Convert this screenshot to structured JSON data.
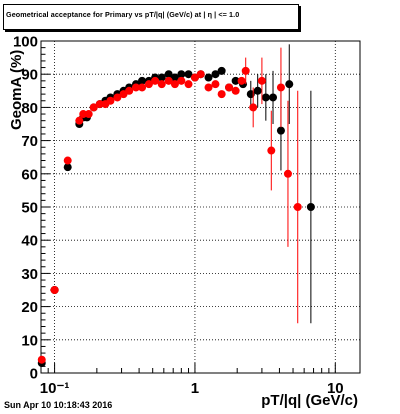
{
  "chart_data": {
    "type": "scatter",
    "title": "Geometrical acceptance for Primary vs pT/|q| (GeV/c) at | η | <= 1.0",
    "xlabel": "pT/|q| (GeV/c)",
    "ylabel": "GeomA (%)",
    "xscale": "log",
    "xlim": [
      0.08,
      15
    ],
    "ylim": [
      0,
      100
    ],
    "xticks": [
      {
        "value": 0.1,
        "label": "10⁻¹"
      },
      {
        "value": 1,
        "label": "1"
      },
      {
        "value": 10,
        "label": "10"
      }
    ],
    "yticks": [
      0,
      10,
      20,
      30,
      40,
      50,
      60,
      70,
      80,
      90,
      100
    ],
    "grid": true,
    "series": [
      {
        "color": "#000000",
        "points": [
          {
            "x": 0.081,
            "y": 3
          },
          {
            "x": 0.1,
            "y": 25,
            "xerr": 0.007
          },
          {
            "x": 0.124,
            "y": 62,
            "xerr": 0.006
          },
          {
            "x": 0.15,
            "y": 75
          },
          {
            "x": 0.16,
            "y": 77
          },
          {
            "x": 0.17,
            "y": 77
          },
          {
            "x": 0.19,
            "y": 80
          },
          {
            "x": 0.21,
            "y": 81
          },
          {
            "x": 0.23,
            "y": 82
          },
          {
            "x": 0.25,
            "y": 83
          },
          {
            "x": 0.28,
            "y": 84
          },
          {
            "x": 0.31,
            "y": 85
          },
          {
            "x": 0.34,
            "y": 86
          },
          {
            "x": 0.38,
            "y": 87
          },
          {
            "x": 0.42,
            "y": 88
          },
          {
            "x": 0.47,
            "y": 88
          },
          {
            "x": 0.52,
            "y": 89
          },
          {
            "x": 0.58,
            "y": 89
          },
          {
            "x": 0.65,
            "y": 90
          },
          {
            "x": 0.72,
            "y": 89
          },
          {
            "x": 0.8,
            "y": 90
          },
          {
            "x": 0.9,
            "y": 90
          },
          {
            "x": 1.0,
            "y": 89
          },
          {
            "x": 1.1,
            "y": 90
          },
          {
            "x": 1.25,
            "y": 89
          },
          {
            "x": 1.4,
            "y": 90
          },
          {
            "x": 1.55,
            "y": 91
          },
          {
            "x": 1.75,
            "y": 86
          },
          {
            "x": 1.95,
            "y": 88
          },
          {
            "x": 2.2,
            "y": 87
          },
          {
            "x": 2.5,
            "y": 84,
            "yerr": 4
          },
          {
            "x": 2.8,
            "y": 85,
            "yerr": 5
          },
          {
            "x": 3.2,
            "y": 83,
            "yerr": 7
          },
          {
            "x": 3.6,
            "y": 83,
            "yerr": 8
          },
          {
            "x": 4.1,
            "y": 73,
            "yerr": 12
          },
          {
            "x": 4.7,
            "y": 87,
            "yerr": 12
          },
          {
            "x": 6.7,
            "y": 50,
            "yerr": 35
          }
        ]
      },
      {
        "color": "#ff0000",
        "points": [
          {
            "x": 0.081,
            "y": 4
          },
          {
            "x": 0.1,
            "y": 25,
            "xerr": 0.007
          },
          {
            "x": 0.124,
            "y": 64,
            "xerr": 0.006
          },
          {
            "x": 0.15,
            "y": 76
          },
          {
            "x": 0.16,
            "y": 78
          },
          {
            "x": 0.175,
            "y": 78
          },
          {
            "x": 0.19,
            "y": 80
          },
          {
            "x": 0.21,
            "y": 81
          },
          {
            "x": 0.23,
            "y": 81
          },
          {
            "x": 0.25,
            "y": 82
          },
          {
            "x": 0.28,
            "y": 83
          },
          {
            "x": 0.31,
            "y": 84
          },
          {
            "x": 0.34,
            "y": 85
          },
          {
            "x": 0.38,
            "y": 86
          },
          {
            "x": 0.42,
            "y": 86
          },
          {
            "x": 0.47,
            "y": 87
          },
          {
            "x": 0.52,
            "y": 88
          },
          {
            "x": 0.58,
            "y": 87
          },
          {
            "x": 0.65,
            "y": 88
          },
          {
            "x": 0.72,
            "y": 87
          },
          {
            "x": 0.8,
            "y": 88
          },
          {
            "x": 0.9,
            "y": 87
          },
          {
            "x": 1.0,
            "y": 89
          },
          {
            "x": 1.1,
            "y": 90
          },
          {
            "x": 1.25,
            "y": 86
          },
          {
            "x": 1.4,
            "y": 87
          },
          {
            "x": 1.55,
            "y": 84
          },
          {
            "x": 1.75,
            "y": 86
          },
          {
            "x": 1.95,
            "y": 85
          },
          {
            "x": 2.15,
            "y": 88
          },
          {
            "x": 2.3,
            "y": 91,
            "yerr": 4
          },
          {
            "x": 2.6,
            "y": 80,
            "yerr": 6
          },
          {
            "x": 3.0,
            "y": 88,
            "yerr": 7
          },
          {
            "x": 3.5,
            "y": 67,
            "yerr": 12
          },
          {
            "x": 4.1,
            "y": 86,
            "yerr": 12
          },
          {
            "x": 4.6,
            "y": 60,
            "yerr": 22
          },
          {
            "x": 5.4,
            "y": 50,
            "yerr": 35
          }
        ]
      }
    ]
  },
  "footer": {
    "datestamp": "Sun Apr 10 10:18:43 2016"
  }
}
